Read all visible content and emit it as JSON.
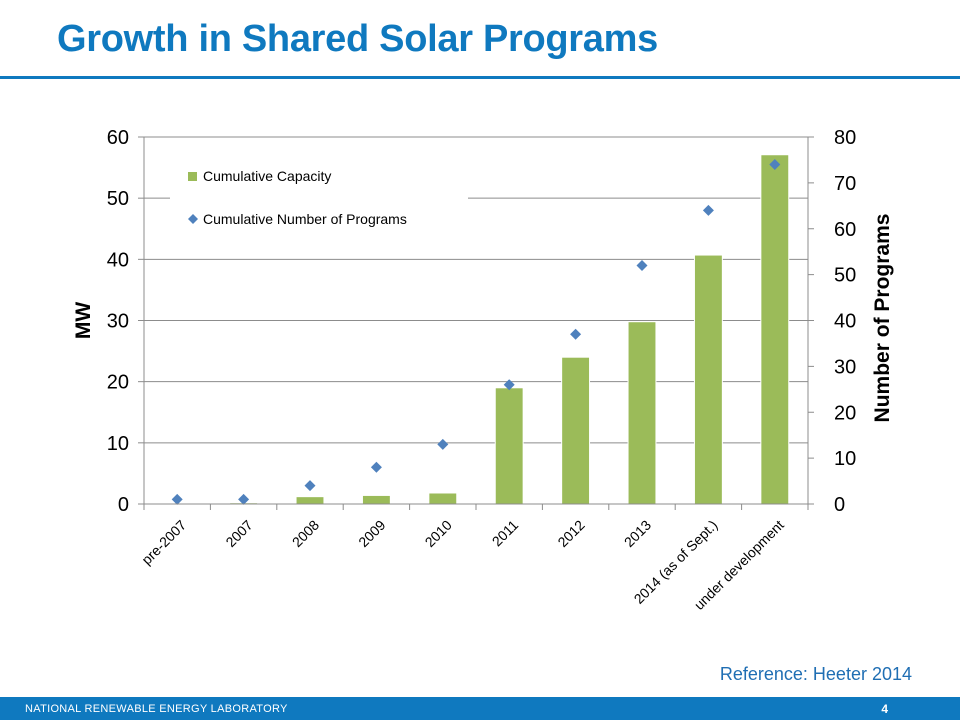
{
  "slide": {
    "title": "Growth in Shared Solar Programs",
    "reference": "Reference: Heeter 2014",
    "footer_org": "NATIONAL RENEWABLE ENERGY LABORATORY",
    "page_number": "4"
  },
  "colors": {
    "title": "#0f79bf",
    "bar": "#9bbb59",
    "marker": "#4f81bd",
    "footer": "#0f79bf"
  },
  "chart_data": {
    "type": "bar",
    "categories": [
      "pre-2007",
      "2007",
      "2008",
      "2009",
      "2010",
      "2011",
      "2012",
      "2013",
      "2014 (as of Sept.)",
      "under development"
    ],
    "series": [
      {
        "name": "Cumulative Capacity",
        "type": "bar",
        "axis": "left",
        "values": [
          0.1,
          0.2,
          1.2,
          1.4,
          1.8,
          19,
          24,
          29.8,
          40.7,
          57.1
        ]
      },
      {
        "name": "Cumulative Number of Programs",
        "type": "scatter",
        "axis": "right",
        "values": [
          1,
          1,
          4,
          8,
          13,
          26,
          37,
          52,
          64,
          74
        ]
      }
    ],
    "ylabel": "MW",
    "y2label": "Number of Programs",
    "ylim": [
      0,
      60
    ],
    "y2lim": [
      0,
      80
    ],
    "yticks": [
      0,
      10,
      20,
      30,
      40,
      50,
      60
    ],
    "y2ticks": [
      0,
      10,
      20,
      30,
      40,
      50,
      60,
      70,
      80
    ],
    "grid": true,
    "legend_position": "top-left"
  }
}
